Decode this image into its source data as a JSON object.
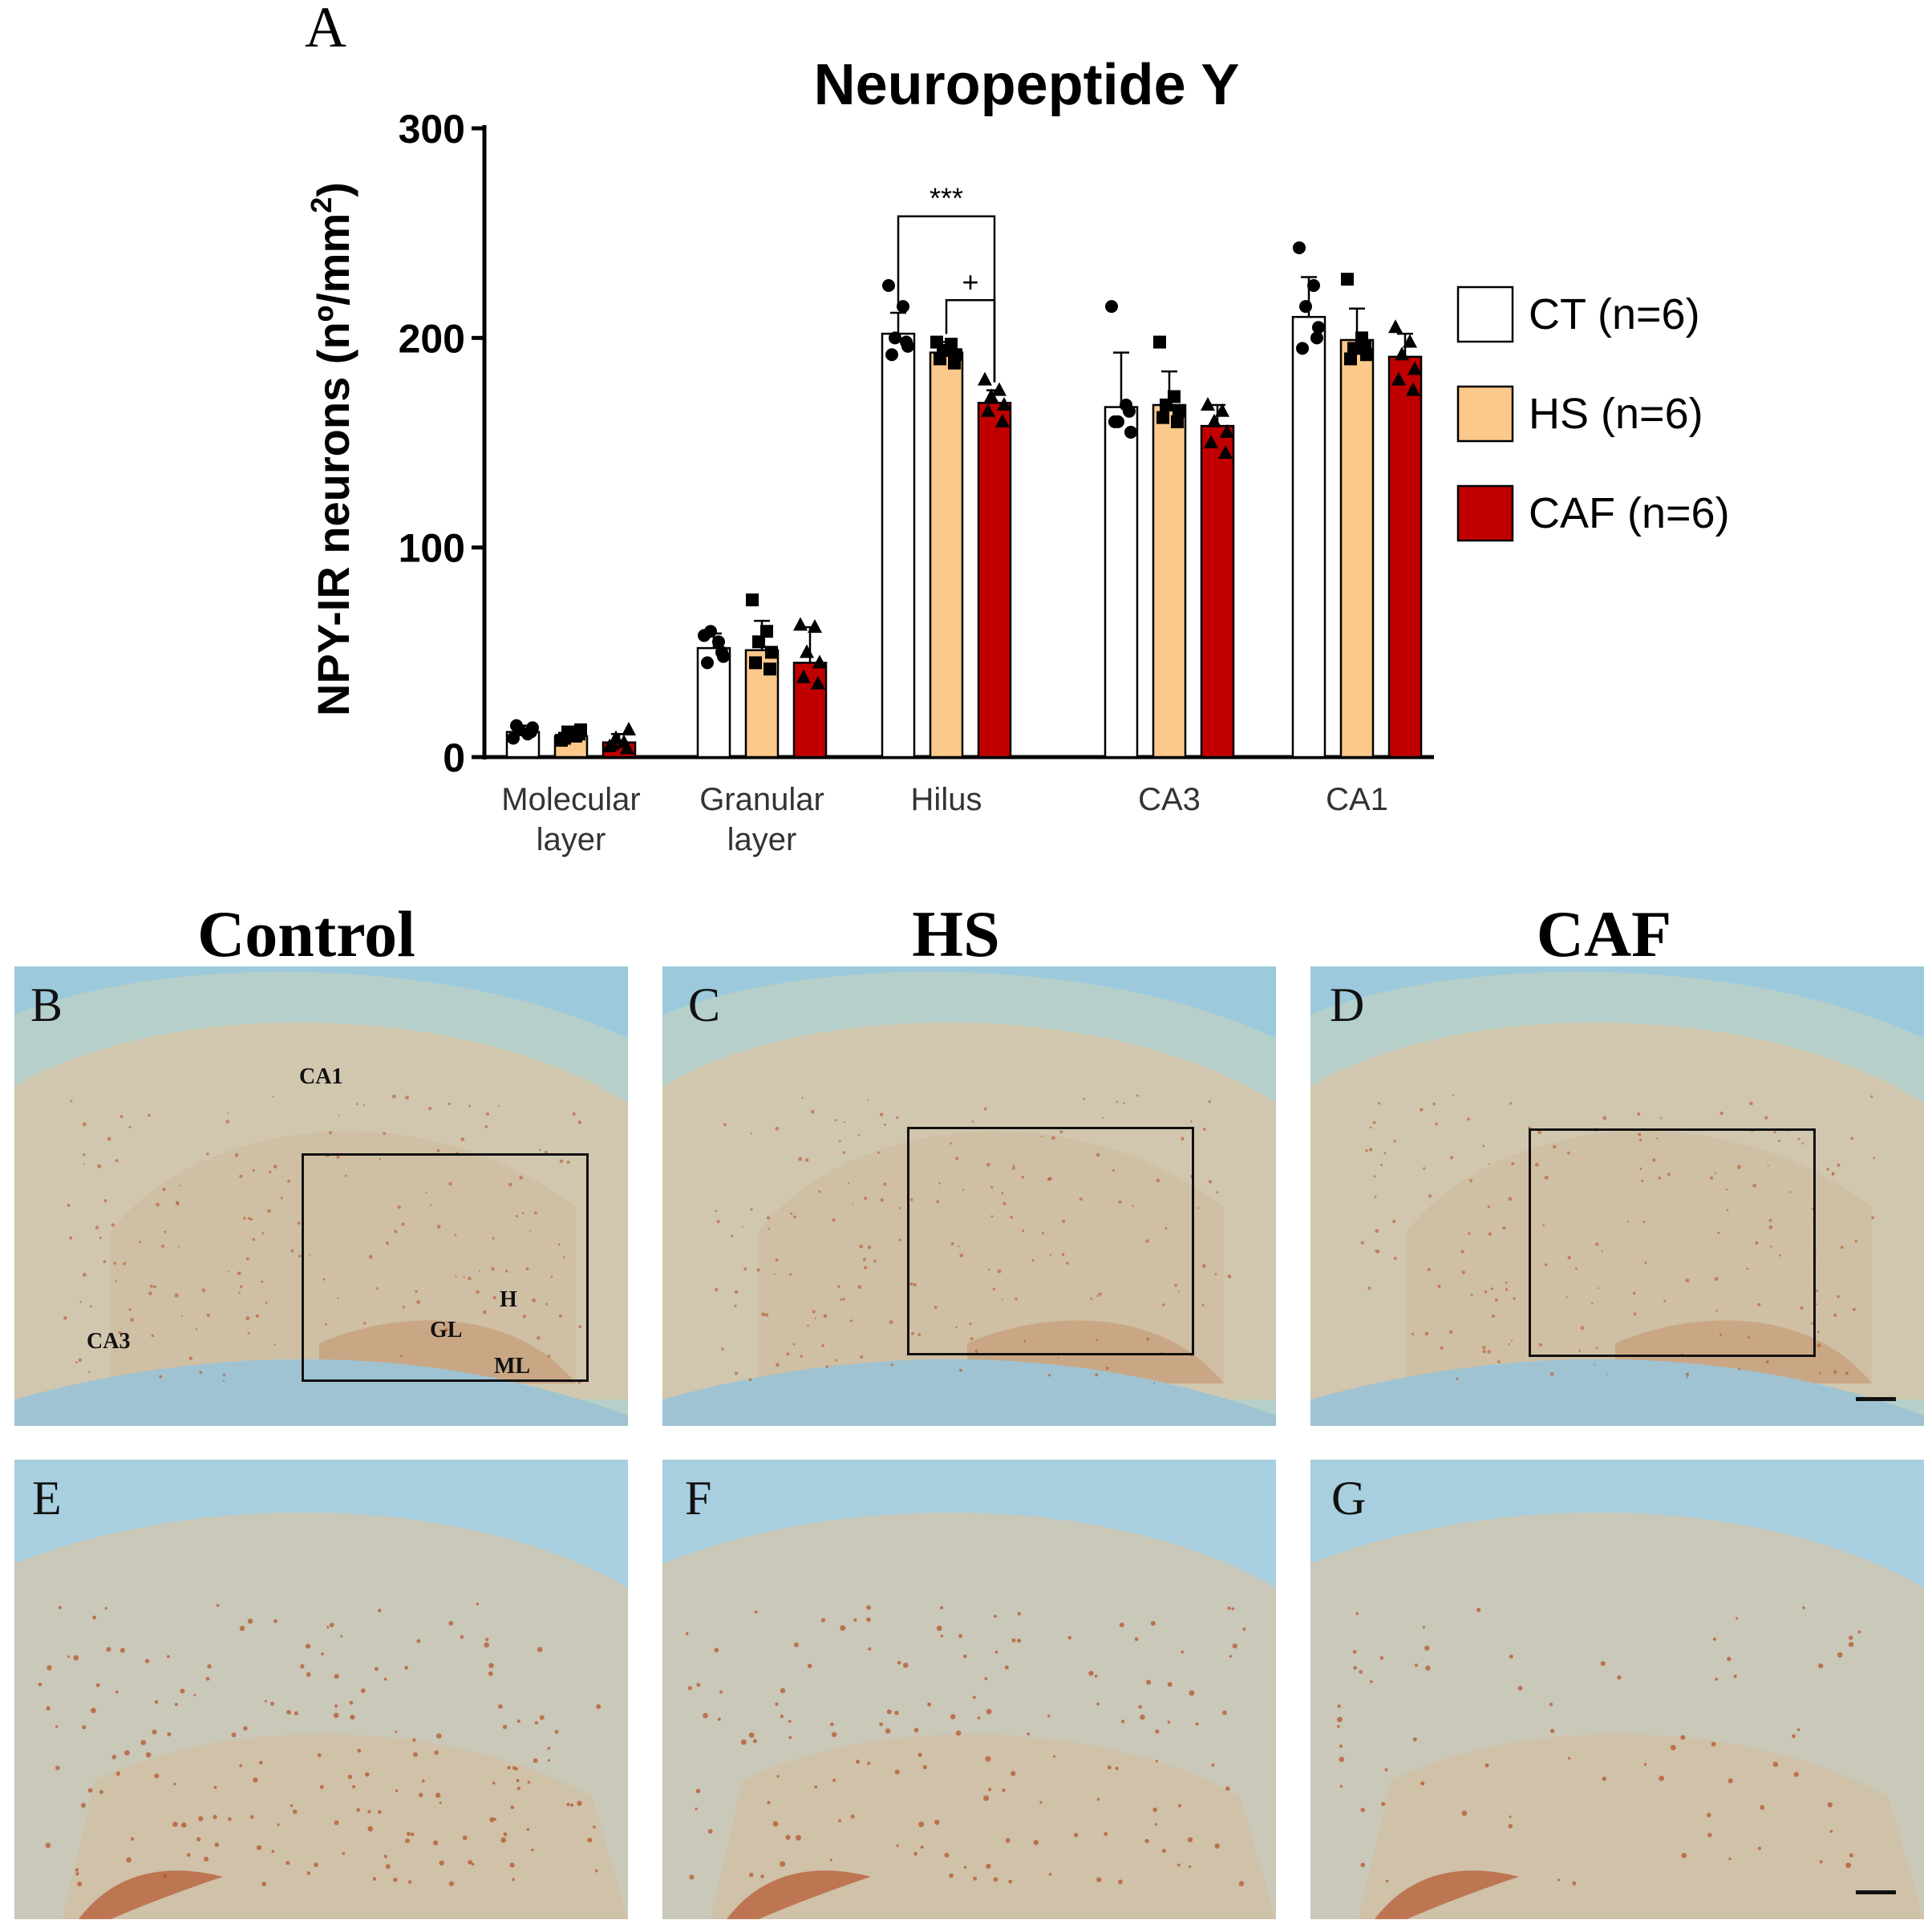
{
  "figure": {
    "panel_a_label": "A",
    "columns": [
      "Control",
      "HS",
      "CAF"
    ],
    "micrographs_top": [
      {
        "letter": "B",
        "regions": [
          "CA1",
          "CA3",
          "H",
          "GL",
          "ML"
        ]
      },
      {
        "letter": "C",
        "regions": []
      },
      {
        "letter": "D",
        "regions": []
      }
    ],
    "micrographs_bottom": [
      {
        "letter": "E"
      },
      {
        "letter": "F"
      },
      {
        "letter": "G"
      }
    ],
    "micro_colors": {
      "background_blue": "#9cc9dc",
      "tissue": "#d9c4a6",
      "stain": "#b5562c"
    }
  },
  "chart_data": {
    "type": "bar",
    "title": "Neuropeptide Y",
    "ylabel_main": "NPY-IR neurons (nº/mm",
    "ylabel_sup": "2",
    "ylabel_close": ")",
    "xlabel": "",
    "ylim": [
      0,
      300
    ],
    "yticks": [
      "0",
      "100",
      "200",
      "300"
    ],
    "categories": [
      {
        "line1": "Molecular",
        "line2": "layer"
      },
      {
        "line1": "Granular",
        "line2": "layer"
      },
      {
        "line1": "Hilus",
        "line2": ""
      },
      {
        "line1": "CA3",
        "line2": ""
      },
      {
        "line1": "CA1",
        "line2": ""
      }
    ],
    "series": [
      {
        "name": "CT (n=6)",
        "color": "#ffffff",
        "marker": "circle",
        "values": [
          12,
          52,
          202,
          167,
          210
        ],
        "errors": [
          3,
          7,
          10,
          26,
          19
        ]
      },
      {
        "name": "HS (n=6)",
        "color": "#fcc98b",
        "marker": "square",
        "values": [
          10,
          51,
          193,
          168,
          199
        ],
        "errors": [
          3,
          14,
          5,
          16,
          15
        ]
      },
      {
        "name": "CAF (n=6)",
        "color": "#c00000",
        "marker": "triangle",
        "values": [
          7,
          45,
          169,
          158,
          191
        ],
        "errors": [
          4,
          17,
          6,
          10,
          11
        ]
      }
    ],
    "points": [
      [
        [
          9,
          11,
          13,
          14,
          15,
          12
        ],
        [
          58,
          55,
          60,
          48,
          45,
          50
        ],
        [
          225,
          215,
          200,
          196,
          192,
          198
        ],
        [
          215,
          168,
          160,
          155,
          160,
          165
        ],
        [
          243,
          225,
          215,
          205,
          195,
          200
        ]
      ],
      [
        [
          8,
          10,
          12,
          13,
          9,
          11
        ],
        [
          75,
          60,
          55,
          50,
          45,
          42
        ],
        [
          198,
          197,
          194,
          192,
          190,
          188
        ],
        [
          198,
          172,
          168,
          165,
          162,
          160
        ],
        [
          228,
          200,
          195,
          192,
          190,
          196
        ]
      ],
      [
        [
          5,
          7,
          9,
          13,
          6,
          4
        ],
        [
          63,
          62,
          50,
          45,
          38,
          35
        ],
        [
          180,
          175,
          172,
          168,
          165,
          160
        ],
        [
          168,
          165,
          160,
          155,
          150,
          145
        ],
        [
          205,
          198,
          192,
          185,
          180,
          175
        ]
      ]
    ],
    "annotations": [
      {
        "text": "***",
        "from_category": 2,
        "from_series": 0,
        "to_series": 2
      },
      {
        "text": "+",
        "from_category": 2,
        "from_series": 1,
        "to_series": 2
      }
    ],
    "legend_position": "right"
  }
}
